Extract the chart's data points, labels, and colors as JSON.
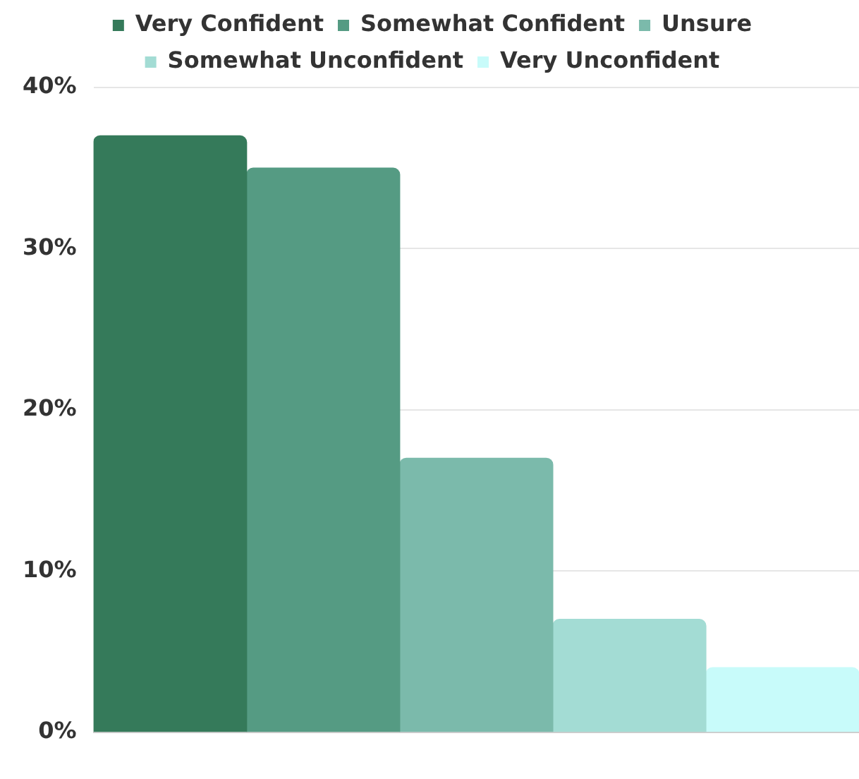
{
  "chart_data": {
    "type": "bar",
    "categories": [
      null
    ],
    "series": [
      {
        "name": "Very Confident",
        "color": "#357a5a",
        "values": [
          37
        ]
      },
      {
        "name": "Somewhat Confident",
        "color": "#559b83",
        "values": [
          35
        ]
      },
      {
        "name": "Unsure",
        "color": "#7bbaab",
        "values": [
          17
        ]
      },
      {
        "name": "Somewhat Unconfident",
        "color": "#a3dcd4",
        "values": [
          7
        ]
      },
      {
        "name": "Very Unconfident",
        "color": "#c8fbfa",
        "values": [
          4
        ]
      }
    ],
    "ylim": [
      0,
      40
    ],
    "yticks": [
      {
        "value": 0,
        "label": "0%"
      },
      {
        "value": 10,
        "label": "10%"
      },
      {
        "value": 20,
        "label": "20%"
      },
      {
        "value": 30,
        "label": "30%"
      },
      {
        "value": 40,
        "label": "40%"
      }
    ],
    "grid": "y",
    "legend": "top"
  }
}
